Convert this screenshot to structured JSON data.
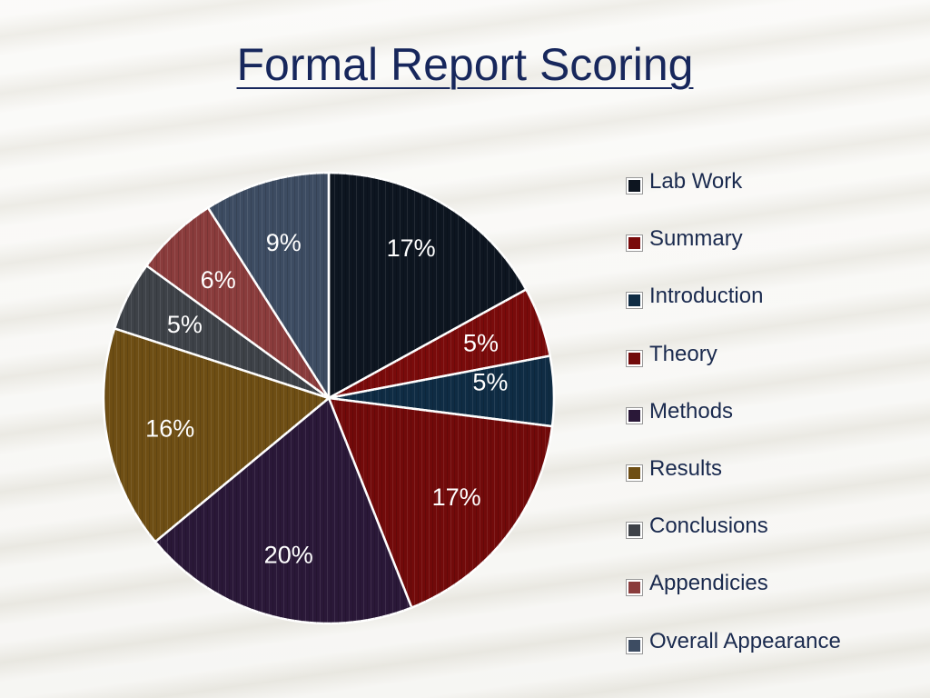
{
  "slide": {
    "title": "Formal Report Scoring"
  },
  "chart_data": {
    "type": "pie",
    "title": "Formal Report Scoring",
    "start_angle_deg": 0,
    "direction": "clockwise",
    "legend_position": "right",
    "slices": [
      {
        "name": "Lab Work",
        "value": 17,
        "label": "17%",
        "color": "#0d1520"
      },
      {
        "name": "Summary",
        "value": 5,
        "label": "5%",
        "color": "#7a0b0b"
      },
      {
        "name": "Introduction",
        "value": 5,
        "label": "5%",
        "color": "#0f2c44"
      },
      {
        "name": "Theory",
        "value": 17,
        "label": "17%",
        "color": "#720a0a"
      },
      {
        "name": "Methods",
        "value": 20,
        "label": "20%",
        "color": "#2a1838"
      },
      {
        "name": "Results",
        "value": 16,
        "label": "16%",
        "color": "#6e4e14"
      },
      {
        "name": "Conclusions",
        "value": 5,
        "label": "5%",
        "color": "#3e4248"
      },
      {
        "name": "Appendicies",
        "value": 6,
        "label": "6%",
        "color": "#8a3c3c"
      },
      {
        "name": "Overall Appearance",
        "value": 9,
        "label": "9%",
        "color": "#3d4c62"
      }
    ]
  }
}
